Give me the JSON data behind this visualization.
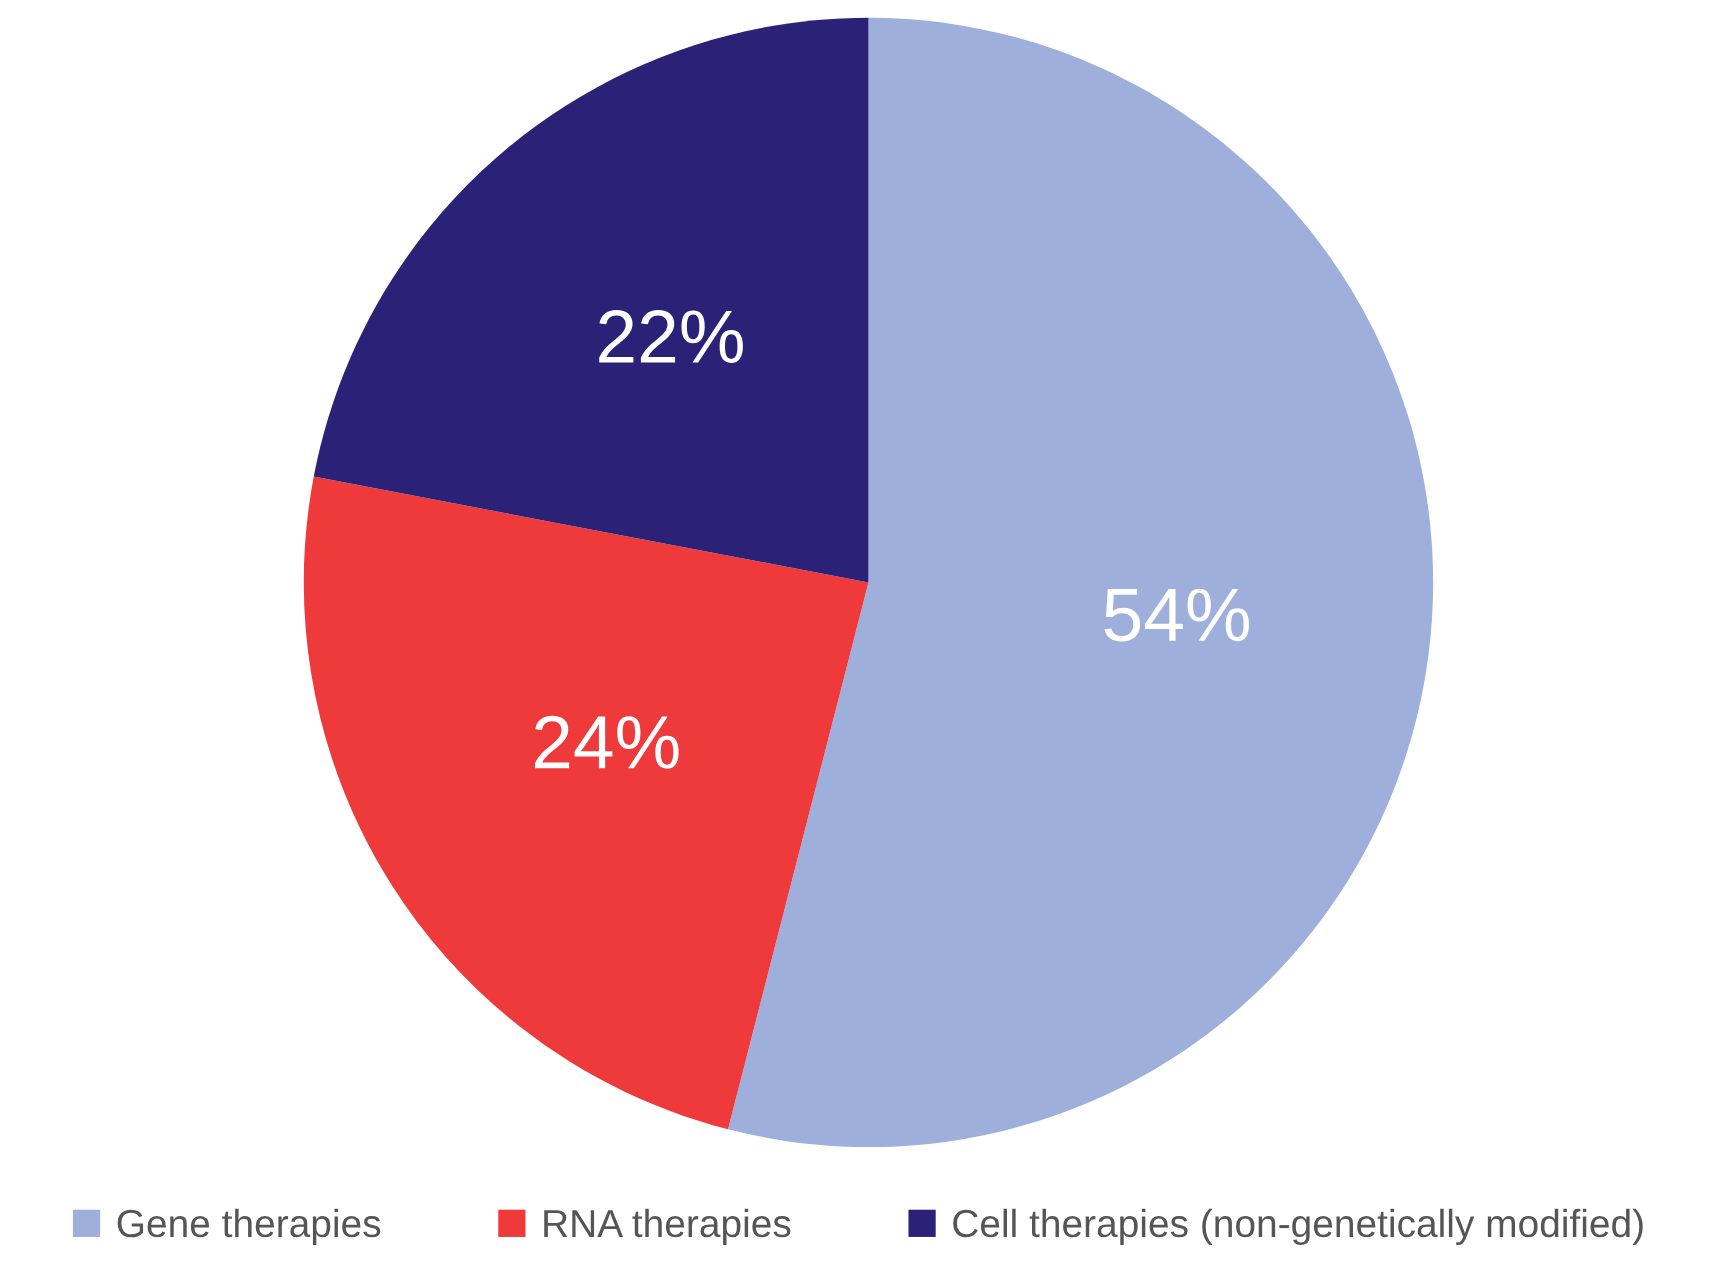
{
  "chart_data": {
    "type": "pie",
    "categories": [
      "Gene therapies",
      "RNA therapies",
      "Cell therapies (non-genetically modified)"
    ],
    "values": [
      54,
      24,
      22
    ],
    "colors": [
      "#9dafda",
      "#ee3a3b",
      "#2b2277"
    ],
    "value_labels": [
      "54%",
      "24%",
      "22%"
    ],
    "legend": "bottom"
  }
}
